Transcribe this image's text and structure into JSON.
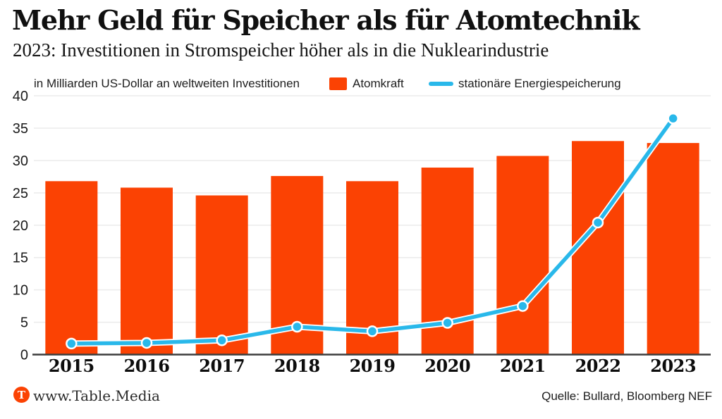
{
  "header": {
    "title": "Mehr Geld für Speicher als für Atomtechnik",
    "subtitle": "2023: Investitionen in Stromspeicher höher als in die Nuklearindustrie"
  },
  "legend": {
    "note": "in Milliarden US-Dollar an weltweiten Investitionen",
    "items": [
      {
        "label": "Atomkraft",
        "marker": "bar-swatch"
      },
      {
        "label": "stationäre Energiespeicherung",
        "marker": "line-swatch"
      }
    ]
  },
  "chart_data": {
    "type": "bar",
    "categories": [
      "2015",
      "2016",
      "2017",
      "2018",
      "2019",
      "2020",
      "2021",
      "2022",
      "2023"
    ],
    "series": [
      {
        "name": "Atomkraft",
        "type": "bar",
        "values": [
          26.8,
          25.8,
          24.6,
          27.6,
          26.8,
          28.9,
          30.7,
          33.0,
          32.7
        ]
      },
      {
        "name": "stationäre Energiespeicherung",
        "type": "line",
        "values": [
          1.7,
          1.8,
          2.2,
          4.3,
          3.6,
          4.9,
          7.5,
          20.4,
          36.5
        ]
      }
    ],
    "title": "Mehr Geld für Speicher als für Atomtechnik",
    "subtitle": "2023: Investitionen in Stromspeicher höher als in die Nuklearindustrie",
    "xlabel": "",
    "ylabel": "in Milliarden US-Dollar an weltweiten Investitionen",
    "ylim": [
      0,
      40
    ],
    "yticks": [
      0,
      5,
      10,
      15,
      20,
      25,
      30,
      35,
      40
    ],
    "grid": true,
    "legend_position": "top"
  },
  "footer": {
    "logo_letter": "T",
    "site": "www.Table.Media",
    "source": "Quelle: Bullard, Bloomberg NEF"
  },
  "colors": {
    "bar": "#FB4203",
    "line": "#29B8EA",
    "marker_ring": "#ffffff",
    "grid": "#ebebeb",
    "axis": "#3c3c3c",
    "tick_text": "#1a1a1a",
    "year_text": "#0d0d0d",
    "logo": "#FB4203"
  }
}
